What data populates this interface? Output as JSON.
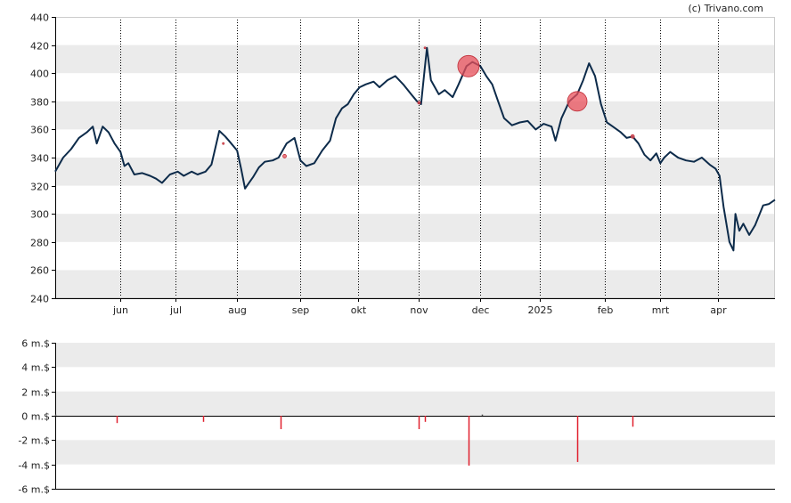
{
  "copyright": "(c) Trivano.com",
  "colors": {
    "price_line": "#0d2b4a",
    "band": "#ebebeb",
    "bubble": "#e8505b",
    "volume_bar": "#e0202e",
    "axis": "#000000"
  },
  "chart_data": [
    {
      "type": "line",
      "title": "",
      "ylabel": "",
      "ylim": [
        240,
        440
      ],
      "yticks": [
        "440",
        "420",
        "400",
        "380",
        "360",
        "340",
        "320",
        "300",
        "280",
        "260",
        "240"
      ],
      "ytick_values": [
        440,
        420,
        400,
        380,
        360,
        340,
        320,
        300,
        280,
        260,
        240
      ],
      "xlim": [
        "2024-05-01",
        "2025-04-30"
      ],
      "xticks": [
        {
          "date": "2024-06-03",
          "label": "jun"
        },
        {
          "date": "2024-07-01",
          "label": "jul"
        },
        {
          "date": "2024-08-01",
          "label": "aug"
        },
        {
          "date": "2024-09-02",
          "label": "sep"
        },
        {
          "date": "2024-10-01",
          "label": "okt"
        },
        {
          "date": "2024-11-01",
          "label": "nov"
        },
        {
          "date": "2024-12-02",
          "label": "dec"
        },
        {
          "date": "2025-01-01",
          "label": "2025"
        },
        {
          "date": "2025-02-03",
          "label": "feb"
        },
        {
          "date": "2025-03-03",
          "label": "mrt"
        },
        {
          "date": "2025-04-01",
          "label": "apr"
        }
      ],
      "grid": "alternating horizontal bands, vertical dotted lines at month ticks",
      "series": [
        {
          "points": [
            [
              "2024-05-01",
              330
            ],
            [
              "2024-05-05",
              340
            ],
            [
              "2024-05-09",
              346
            ],
            [
              "2024-05-13",
              354
            ],
            [
              "2024-05-17",
              358
            ],
            [
              "2024-05-20",
              362
            ],
            [
              "2024-05-22",
              350
            ],
            [
              "2024-05-25",
              362
            ],
            [
              "2024-05-28",
              358
            ],
            [
              "2024-05-31",
              350
            ],
            [
              "2024-06-03",
              344
            ],
            [
              "2024-06-05",
              334
            ],
            [
              "2024-06-07",
              336
            ],
            [
              "2024-06-10",
              328
            ],
            [
              "2024-06-14",
              329
            ],
            [
              "2024-06-18",
              327
            ],
            [
              "2024-06-21",
              325
            ],
            [
              "2024-06-24",
              322
            ],
            [
              "2024-06-28",
              328
            ],
            [
              "2024-07-02",
              330
            ],
            [
              "2024-07-05",
              327
            ],
            [
              "2024-07-09",
              330
            ],
            [
              "2024-07-12",
              328
            ],
            [
              "2024-07-16",
              330
            ],
            [
              "2024-07-19",
              335
            ],
            [
              "2024-07-23",
              359
            ],
            [
              "2024-07-26",
              355
            ],
            [
              "2024-07-29",
              350
            ],
            [
              "2024-08-01",
              345
            ],
            [
              "2024-08-03",
              332
            ],
            [
              "2024-08-05",
              318
            ],
            [
              "2024-08-07",
              322
            ],
            [
              "2024-08-09",
              326
            ],
            [
              "2024-08-12",
              333
            ],
            [
              "2024-08-15",
              337
            ],
            [
              "2024-08-19",
              338
            ],
            [
              "2024-08-22",
              340
            ],
            [
              "2024-08-26",
              350
            ],
            [
              "2024-08-30",
              354
            ],
            [
              "2024-09-02",
              338
            ],
            [
              "2024-09-05",
              334
            ],
            [
              "2024-09-09",
              336
            ],
            [
              "2024-09-13",
              345
            ],
            [
              "2024-09-17",
              352
            ],
            [
              "2024-09-20",
              368
            ],
            [
              "2024-09-23",
              375
            ],
            [
              "2024-09-26",
              378
            ],
            [
              "2024-09-29",
              385
            ],
            [
              "2024-10-02",
              390
            ],
            [
              "2024-10-05",
              392
            ],
            [
              "2024-10-09",
              394
            ],
            [
              "2024-10-12",
              390
            ],
            [
              "2024-10-16",
              395
            ],
            [
              "2024-10-20",
              398
            ],
            [
              "2024-10-24",
              392
            ],
            [
              "2024-10-28",
              385
            ],
            [
              "2024-10-31",
              380
            ],
            [
              "2024-11-02",
              378
            ],
            [
              "2024-11-04",
              405
            ],
            [
              "2024-11-05",
              418
            ],
            [
              "2024-11-07",
              395
            ],
            [
              "2024-11-11",
              385
            ],
            [
              "2024-11-14",
              388
            ],
            [
              "2024-11-18",
              383
            ],
            [
              "2024-11-21",
              392
            ],
            [
              "2024-11-25",
              405
            ],
            [
              "2024-11-28",
              408
            ],
            [
              "2024-12-02",
              405
            ],
            [
              "2024-12-05",
              398
            ],
            [
              "2024-12-08",
              392
            ],
            [
              "2024-12-11",
              380
            ],
            [
              "2024-12-14",
              368
            ],
            [
              "2024-12-18",
              363
            ],
            [
              "2024-12-22",
              365
            ],
            [
              "2024-12-26",
              366
            ],
            [
              "2024-12-30",
              360
            ],
            [
              "2025-01-03",
              364
            ],
            [
              "2025-01-07",
              362
            ],
            [
              "2025-01-09",
              352
            ],
            [
              "2025-01-12",
              368
            ],
            [
              "2025-01-16",
              380
            ],
            [
              "2025-01-20",
              385
            ],
            [
              "2025-01-23",
              395
            ],
            [
              "2025-01-26",
              407
            ],
            [
              "2025-01-29",
              398
            ],
            [
              "2025-02-01",
              378
            ],
            [
              "2025-02-04",
              365
            ],
            [
              "2025-02-07",
              362
            ],
            [
              "2025-02-11",
              358
            ],
            [
              "2025-02-14",
              354
            ],
            [
              "2025-02-17",
              355
            ],
            [
              "2025-02-20",
              350
            ],
            [
              "2025-02-23",
              342
            ],
            [
              "2025-02-26",
              338
            ],
            [
              "2025-03-01",
              343
            ],
            [
              "2025-03-03",
              336
            ],
            [
              "2025-03-05",
              340
            ],
            [
              "2025-03-08",
              344
            ],
            [
              "2025-03-12",
              340
            ],
            [
              "2025-03-16",
              338
            ],
            [
              "2025-03-20",
              337
            ],
            [
              "2025-03-24",
              340
            ],
            [
              "2025-03-28",
              335
            ],
            [
              "2025-03-31",
              332
            ],
            [
              "2025-04-02",
              327
            ],
            [
              "2025-04-04",
              305
            ],
            [
              "2025-04-07",
              280
            ],
            [
              "2025-04-09",
              274
            ],
            [
              "2025-04-10",
              300
            ],
            [
              "2025-04-12",
              288
            ],
            [
              "2025-04-14",
              293
            ],
            [
              "2025-04-17",
              285
            ],
            [
              "2025-04-20",
              292
            ],
            [
              "2025-04-24",
              306
            ],
            [
              "2025-04-27",
              307
            ],
            [
              "2025-04-30",
              310
            ]
          ]
        }
      ],
      "bubbles": [
        {
          "date": "2024-07-25",
          "value": 350,
          "size": 1
        },
        {
          "date": "2024-08-25",
          "value": 341,
          "size": 2
        },
        {
          "date": "2024-11-01",
          "value": 379,
          "size": 1.5
        },
        {
          "date": "2024-11-04",
          "value": 418,
          "size": 1
        },
        {
          "date": "2024-11-26",
          "value": 405,
          "size": 12
        },
        {
          "date": "2025-01-20",
          "value": 380,
          "size": 11
        },
        {
          "date": "2025-02-17",
          "value": 355,
          "size": 2
        }
      ]
    },
    {
      "type": "bar",
      "title": "",
      "ylabel": "",
      "ylim": [
        -6,
        6
      ],
      "yticks": [
        "6 m.$",
        "4 m.$",
        "2 m.$",
        "0 m.$",
        "-2 m.$",
        "-4 m.$",
        "-6 m.$"
      ],
      "ytick_values": [
        6,
        4,
        2,
        0,
        -2,
        -4,
        -6
      ],
      "unit": "m.$",
      "grid": "alternating horizontal bands",
      "values": [
        [
          "2024-05-01",
          0.1
        ],
        [
          "2024-06-01",
          -0.6
        ],
        [
          "2024-07-15",
          -0.5
        ],
        [
          "2024-08-23",
          -1.1
        ],
        [
          "2024-11-01",
          -1.1
        ],
        [
          "2024-11-04",
          -0.5
        ],
        [
          "2024-11-26",
          -4.1
        ],
        [
          "2024-12-03",
          0.1
        ],
        [
          "2025-01-20",
          -3.8
        ],
        [
          "2025-02-17",
          -0.9
        ]
      ]
    }
  ]
}
